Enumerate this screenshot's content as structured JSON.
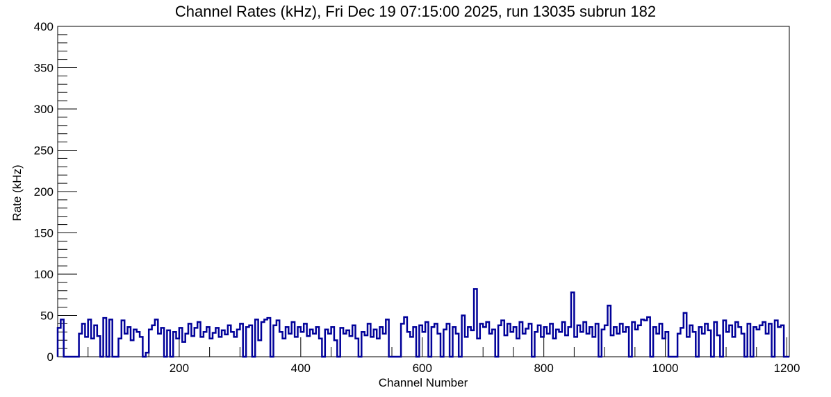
{
  "chart_data": {
    "type": "histogram-step",
    "title": "Channel Rates (kHz), Fri Dec 19 07:15:00 2025, run 13035 subrun 182",
    "xlabel": "Channel Number",
    "ylabel": "Rate (kHz)",
    "xlim": [
      0,
      1204
    ],
    "ylim": [
      0,
      400
    ],
    "x_ticks": [
      200,
      400,
      600,
      800,
      1000,
      1200
    ],
    "y_ticks": [
      0,
      50,
      100,
      150,
      200,
      250,
      300,
      350,
      400
    ],
    "bin_width": 5,
    "color": "#000099",
    "values": [
      35,
      45,
      0,
      0,
      0,
      0,
      0,
      28,
      40,
      24,
      45,
      22,
      38,
      25,
      0,
      47,
      0,
      45,
      0,
      0,
      22,
      44,
      28,
      36,
      20,
      33,
      30,
      24,
      0,
      5,
      33,
      38,
      45,
      28,
      35,
      0,
      32,
      0,
      30,
      22,
      35,
      18,
      28,
      40,
      25,
      35,
      42,
      24,
      30,
      36,
      22,
      29,
      35,
      24,
      32,
      27,
      38,
      30,
      24,
      33,
      40,
      0,
      36,
      38,
      0,
      45,
      20,
      42,
      45,
      47,
      0,
      38,
      44,
      30,
      22,
      36,
      28,
      42,
      24,
      36,
      30,
      40,
      25,
      33,
      28,
      36,
      22,
      0,
      33,
      28,
      36,
      20,
      0,
      35,
      28,
      32,
      25,
      38,
      22,
      0,
      30,
      26,
      40,
      24,
      33,
      22,
      36,
      28,
      45,
      0,
      0,
      0,
      0,
      40,
      48,
      30,
      24,
      36,
      0,
      38,
      30,
      42,
      0,
      36,
      40,
      28,
      0,
      33,
      40,
      0,
      36,
      28,
      0,
      50,
      24,
      36,
      32,
      82,
      22,
      40,
      36,
      42,
      28,
      33,
      0,
      38,
      44,
      26,
      40,
      30,
      36,
      22,
      42,
      28,
      34,
      40,
      0,
      30,
      38,
      24,
      36,
      28,
      40,
      22,
      33,
      30,
      42,
      26,
      36,
      78,
      24,
      38,
      30,
      42,
      28,
      36,
      24,
      40,
      0,
      33,
      38,
      62,
      26,
      36,
      28,
      40,
      30,
      36,
      0,
      42,
      33,
      38,
      45,
      44,
      48,
      0,
      36,
      28,
      40,
      22,
      30,
      0,
      0,
      0,
      28,
      35,
      53,
      24,
      38,
      30,
      0,
      36,
      28,
      40,
      32,
      0,
      42,
      26,
      0,
      44,
      30,
      38,
      24,
      42,
      36,
      28,
      0,
      40,
      0,
      36,
      33,
      38,
      42,
      28,
      40,
      0,
      44,
      36,
      38,
      0,
      0
    ]
  }
}
